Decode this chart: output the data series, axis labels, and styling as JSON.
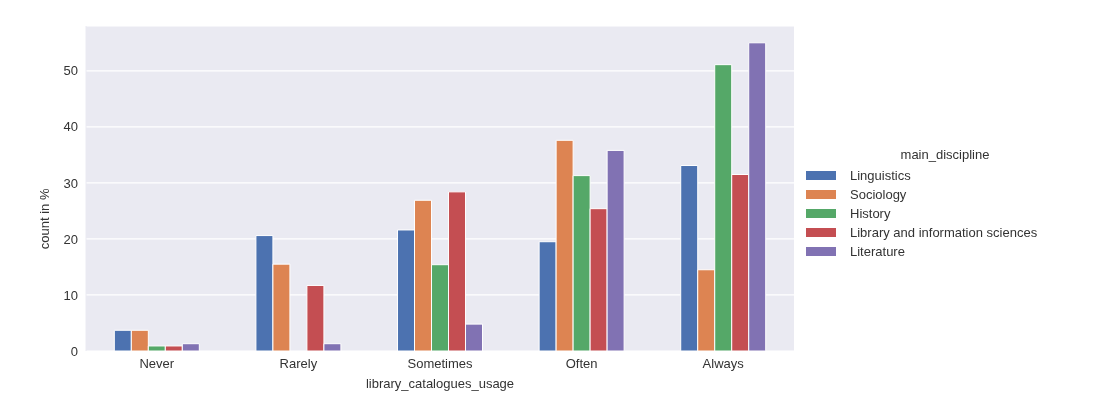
{
  "chart_data": {
    "type": "bar",
    "xlabel": "library_catalogues_usage",
    "ylabel": "count in %",
    "legend_title": "main_discipline",
    "categories": [
      "Never",
      "Rarely",
      "Sometimes",
      "Often",
      "Always"
    ],
    "series": [
      {
        "name": "Linguistics",
        "color": "#4c72b0",
        "values": [
          3.7,
          20.6,
          21.6,
          19.5,
          33.1
        ]
      },
      {
        "name": "Sociology",
        "color": "#dd8452",
        "values": [
          3.7,
          15.5,
          26.9,
          37.6,
          14.5
        ]
      },
      {
        "name": "History",
        "color": "#55a868",
        "values": [
          0.9,
          0,
          15.4,
          31.3,
          51.1
        ]
      },
      {
        "name": "Library and information sciences",
        "color": "#c44e52",
        "values": [
          0.9,
          11.7,
          28.4,
          25.4,
          31.5
        ]
      },
      {
        "name": "Literature",
        "color": "#8172b3",
        "values": [
          1.3,
          1.3,
          4.8,
          35.8,
          55.0
        ]
      }
    ],
    "ylim": [
      0,
      58
    ],
    "yticks": [
      0,
      10,
      20,
      30,
      40,
      50
    ],
    "grid": "y",
    "legend": "right"
  }
}
